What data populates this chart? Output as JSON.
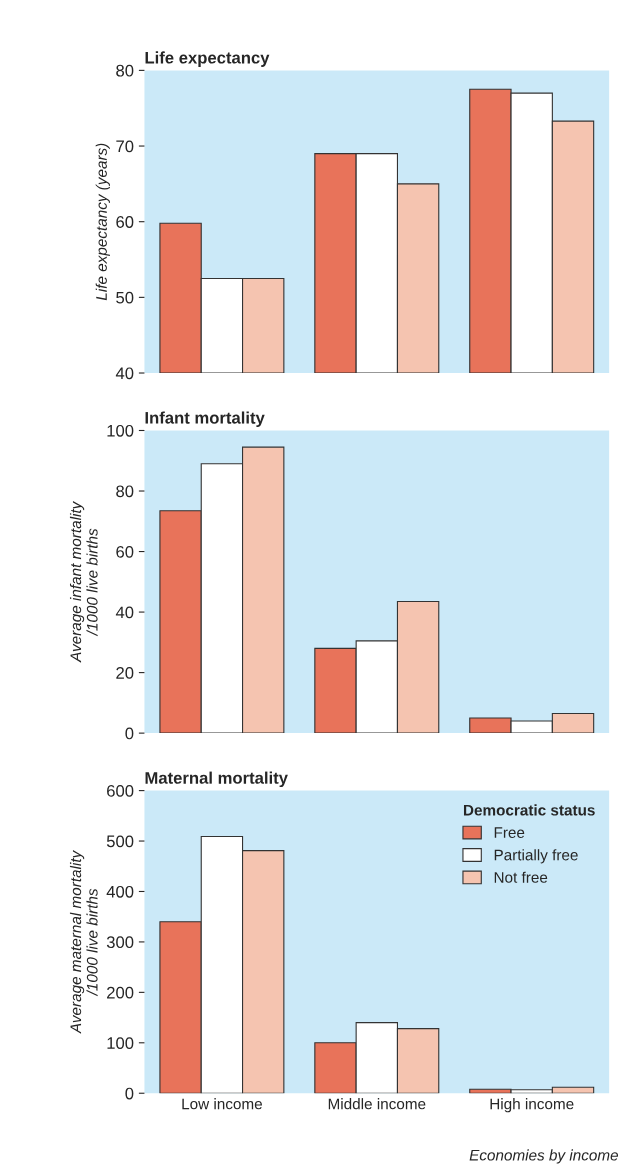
{
  "chart_data": [
    {
      "type": "bar",
      "title": "Life expectancy",
      "ylabel": "Life expectancy (years)",
      "categories": [
        null,
        null,
        null
      ],
      "ylim": [
        40,
        80
      ],
      "yticks": [
        40,
        50,
        60,
        70,
        80
      ],
      "tick_labels": "y",
      "series": [
        {
          "color": "#e8735a",
          "values": [
            59.8,
            69,
            77.5
          ]
        },
        {
          "color": "#ffffff",
          "values": [
            52.5,
            69,
            77
          ]
        },
        {
          "color": "#f5c4b0",
          "values": [
            52.5,
            65,
            73.3
          ]
        }
      ]
    },
    {
      "type": "bar",
      "title": "Infant mortality",
      "ylabel": "Average infant mortality\n/1000 live births",
      "categories": [
        null,
        null,
        null
      ],
      "ylim": [
        0,
        100
      ],
      "yticks": [
        0,
        20,
        40,
        60,
        80,
        100
      ],
      "tick_labels": "y",
      "series": [
        {
          "color": "#e8735a",
          "values": [
            73.5,
            28,
            5
          ]
        },
        {
          "color": "#ffffff",
          "values": [
            89,
            30.5,
            4
          ]
        },
        {
          "color": "#f5c4b0",
          "values": [
            94.5,
            43.5,
            6.5
          ]
        }
      ]
    },
    {
      "type": "bar",
      "title": "Maternal mortality",
      "ylabel": "Average maternal mortality\n/1000 live births",
      "xlabel": "Economies by income",
      "legend_title": "Democratic status",
      "categories": [
        "Low income",
        "Middle income",
        "High income"
      ],
      "ylim": [
        0,
        600
      ],
      "yticks": [
        0,
        100,
        200,
        300,
        400,
        500,
        600
      ],
      "legend": "top right",
      "series": [
        {
          "name": "Free",
          "color": "#e8735a",
          "values": [
            340,
            100,
            8
          ]
        },
        {
          "name": "Partially free",
          "color": "#ffffff",
          "values": [
            509,
            140,
            7
          ]
        },
        {
          "name": "Not free",
          "color": "#f5c4b0",
          "values": [
            481,
            128,
            12
          ]
        }
      ]
    }
  ]
}
